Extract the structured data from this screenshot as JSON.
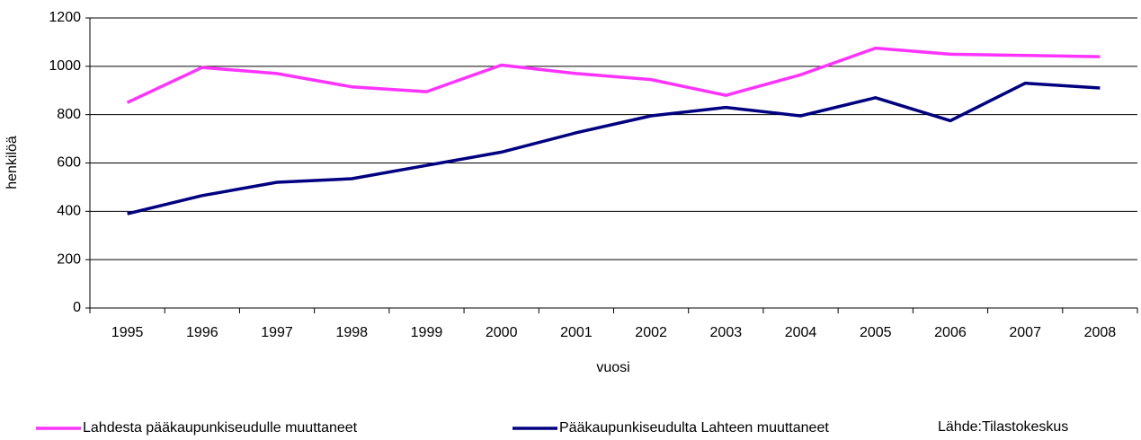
{
  "chart_data": {
    "type": "line",
    "y_label": "henkilöä",
    "x_label": "vuosi",
    "annotation": "Lähde:Tilastokeskus",
    "categories": [
      "1995",
      "1996",
      "1997",
      "1998",
      "1999",
      "2000",
      "2001",
      "2002",
      "2003",
      "2004",
      "2005",
      "2006",
      "2007",
      "2008"
    ],
    "series": [
      {
        "name": "Lahdesta pääkaupunkiseudulle muuttaneet",
        "color": "#ff33ff",
        "values": [
          850,
          995,
          970,
          915,
          895,
          1005,
          970,
          945,
          880,
          965,
          1075,
          1050,
          1045,
          1040
        ]
      },
      {
        "name": "Pääkaupunkiseudulta Lahteen muuttaneet",
        "color": "#000080",
        "values": [
          390,
          465,
          520,
          535,
          590,
          645,
          725,
          795,
          830,
          795,
          870,
          775,
          930,
          910
        ]
      }
    ],
    "ylim": [
      0,
      1200
    ],
    "yticks": [
      0,
      200,
      400,
      600,
      800,
      1000,
      1200
    ],
    "grid": true,
    "legend": "bottom"
  }
}
